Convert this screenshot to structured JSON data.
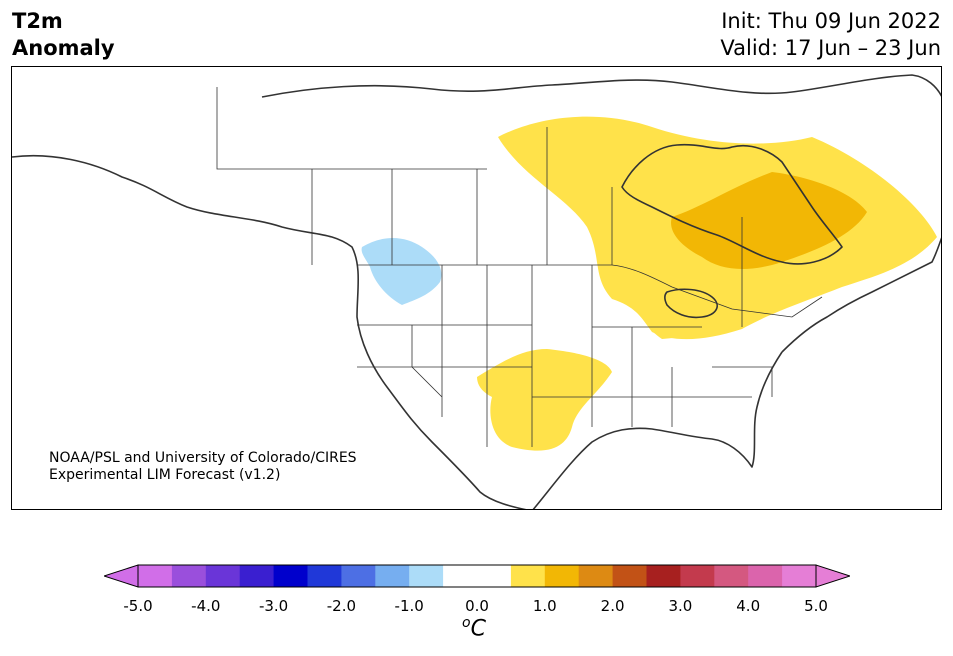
{
  "title": {
    "variable": "T2m",
    "subtitle": "Anomaly",
    "init": "Init: Thu 09 Jun 2022",
    "valid": "Valid: 17 Jun – 23 Jun"
  },
  "credit": {
    "line1": "NOAA/PSL and University of Colorado/CIRES",
    "line2": "Experimental LIM Forecast (v1.2)"
  },
  "colorbar": {
    "unit_prefix": "o",
    "unit": "C",
    "ticks": [
      "-5.0",
      "-4.0",
      "-3.0",
      "-2.0",
      "-1.0",
      "0.0",
      "1.0",
      "2.0",
      "3.0",
      "4.0",
      "5.0"
    ],
    "colors": [
      "#d16ee8",
      "#9a4fdc",
      "#6a35d8",
      "#3a1fd0",
      "#0000cc",
      "#2038d8",
      "#4d6fe4",
      "#76aef0",
      "#acdcf8",
      "#ffffff",
      "#ffffff",
      "#ffe24a",
      "#f2b705",
      "#dd8a13",
      "#c25216",
      "#a7201f",
      "#c33a4d",
      "#d45880",
      "#db64ac",
      "#e57ed6"
    ],
    "under_color": "#d16ee8",
    "over_color": "#e57ed6"
  },
  "map": {
    "anomaly_colors": {
      "cold_weak": "#acdcf8",
      "warm_weak": "#ffe24a",
      "warm_moderate": "#f2b705"
    },
    "coastline_color": "#333333"
  }
}
